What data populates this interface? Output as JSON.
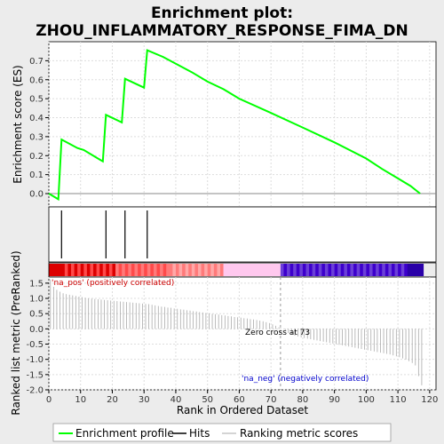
{
  "chart_data": {
    "type": "line",
    "title_line1": "Enrichment plot:",
    "title_line2": "ZHOU_INFLAMMATORY_RESPONSE_FIMA_DN",
    "top_panel": {
      "ylabel": "Enrichment score (ES)",
      "ylim": [
        -0.07,
        0.8
      ],
      "yticks": [
        "0.0",
        "0.1",
        "0.2",
        "0.3",
        "0.4",
        "0.5",
        "0.6",
        "0.7"
      ],
      "series": [
        {
          "name": "Enrichment profile",
          "color": "#00ff00",
          "points": [
            [
              0,
              0.0
            ],
            [
              3,
              -0.03
            ],
            [
              4,
              0.285
            ],
            [
              9,
              0.24
            ],
            [
              11,
              0.23
            ],
            [
              16,
              0.18
            ],
            [
              17,
              0.17
            ],
            [
              18,
              0.415
            ],
            [
              23,
              0.375
            ],
            [
              24,
              0.605
            ],
            [
              30,
              0.558
            ],
            [
              31,
              0.755
            ],
            [
              36,
              0.72
            ],
            [
              45,
              0.64
            ],
            [
              50,
              0.59
            ],
            [
              55,
              0.55
            ],
            [
              60,
              0.5
            ],
            [
              70,
              0.425
            ],
            [
              80,
              0.348
            ],
            [
              90,
              0.27
            ],
            [
              100,
              0.185
            ],
            [
              105,
              0.13
            ],
            [
              110,
              0.08
            ],
            [
              114,
              0.04
            ],
            [
              117,
              0.0
            ]
          ]
        }
      ]
    },
    "hits": {
      "name": "Hits",
      "positions": [
        4,
        18,
        24,
        31
      ]
    },
    "colorbar": {
      "total": 118,
      "zero_cross": 73,
      "pos_colors": [
        "#dd0000",
        "#ff4a4a",
        "#ff7a7a",
        "#ffa8a8",
        "#ffc8ee"
      ],
      "neg_colors": [
        "#3d00cc",
        "#6b3fd8",
        "#2a00a8"
      ]
    },
    "bottom_panel": {
      "ylabel": "Ranked list metric (PreRanked)",
      "xlabel": "Rank in Ordered Dataset",
      "ylim": [
        -2.0,
        1.7
      ],
      "yticks": [
        "-2.0",
        "-1.5",
        "-1.0",
        "-0.5",
        "0.0",
        "0.5",
        "1.0",
        "1.5"
      ],
      "series_name": "Ranking metric scores",
      "metric": [
        1.62,
        1.38,
        1.28,
        1.22,
        1.17,
        1.14,
        1.12,
        1.1,
        1.08,
        1.06,
        1.04,
        1.02,
        1.0,
        0.99,
        0.98,
        0.97,
        0.96,
        0.95,
        0.94,
        0.93,
        0.92,
        0.91,
        0.9,
        0.89,
        0.88,
        0.87,
        0.86,
        0.85,
        0.84,
        0.83,
        0.82,
        0.81,
        0.79,
        0.77,
        0.75,
        0.73,
        0.72,
        0.7,
        0.69,
        0.67,
        0.66,
        0.64,
        0.63,
        0.61,
        0.6,
        0.58,
        0.57,
        0.55,
        0.54,
        0.52,
        0.51,
        0.49,
        0.48,
        0.47,
        0.45,
        0.44,
        0.42,
        0.41,
        0.39,
        0.38,
        0.37,
        0.35,
        0.34,
        0.32,
        0.31,
        0.29,
        0.27,
        0.25,
        0.22,
        0.19,
        0.15,
        0.1,
        0.05,
        0.0,
        -0.08,
        -0.14,
        -0.18,
        -0.22,
        -0.25,
        -0.28,
        -0.3,
        -0.32,
        -0.34,
        -0.36,
        -0.38,
        -0.4,
        -0.42,
        -0.44,
        -0.46,
        -0.48,
        -0.5,
        -0.52,
        -0.54,
        -0.56,
        -0.58,
        -0.6,
        -0.62,
        -0.64,
        -0.66,
        -0.68,
        -0.7,
        -0.72,
        -0.74,
        -0.76,
        -0.78,
        -0.8,
        -0.82,
        -0.84,
        -0.87,
        -0.9,
        -0.93,
        -0.97,
        -1.01,
        -1.06,
        -1.12,
        -1.2,
        -1.55,
        -1.85
      ],
      "label_pos": "'na_pos' (positively correlated)",
      "label_neg": "'na_neg' (negatively correlated)",
      "zero_cross_text": "Zero cross at 73"
    },
    "xlim": [
      0,
      122
    ],
    "xticks": [
      "0",
      "10",
      "20",
      "30",
      "40",
      "50",
      "60",
      "70",
      "80",
      "90",
      "100",
      "110",
      "120"
    ],
    "grid": true
  },
  "legend": {
    "items": [
      {
        "label": "Enrichment profile",
        "color": "#00ff00"
      },
      {
        "label": "Hits",
        "color": "#000000"
      },
      {
        "label": "Ranking metric scores",
        "color": "#aaaaaa"
      }
    ]
  }
}
